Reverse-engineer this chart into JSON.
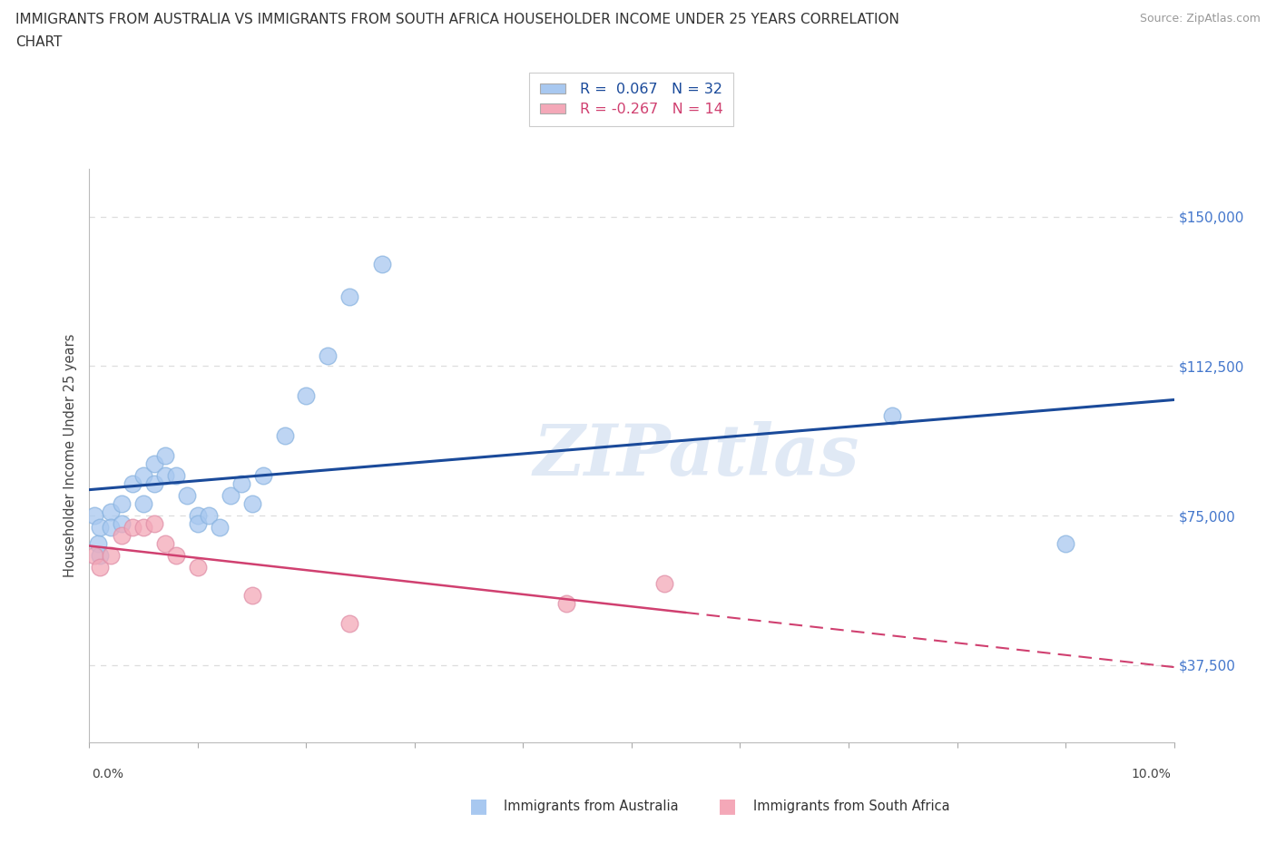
{
  "title_line1": "IMMIGRANTS FROM AUSTRALIA VS IMMIGRANTS FROM SOUTH AFRICA HOUSEHOLDER INCOME UNDER 25 YEARS CORRELATION",
  "title_line2": "CHART",
  "source": "Source: ZipAtlas.com",
  "ylabel": "Householder Income Under 25 years",
  "ytick_values": [
    37500,
    75000,
    112500,
    150000
  ],
  "xlim": [
    0.0,
    0.1
  ],
  "ylim": [
    18000,
    162000
  ],
  "aus_color": "#a8c8f0",
  "sa_color": "#f4a8b8",
  "aus_line_color": "#1a4a9a",
  "sa_line_color": "#d04070",
  "ytick_color": "#4477cc",
  "watermark": "ZIPatlas",
  "australia_x": [
    0.0005,
    0.0008,
    0.001,
    0.001,
    0.002,
    0.002,
    0.003,
    0.003,
    0.004,
    0.005,
    0.005,
    0.006,
    0.006,
    0.007,
    0.007,
    0.008,
    0.009,
    0.01,
    0.01,
    0.011,
    0.012,
    0.013,
    0.014,
    0.015,
    0.016,
    0.018,
    0.02,
    0.022,
    0.024,
    0.027,
    0.074,
    0.09
  ],
  "australia_y": [
    75000,
    68000,
    72000,
    65000,
    76000,
    72000,
    78000,
    73000,
    83000,
    85000,
    78000,
    88000,
    83000,
    90000,
    85000,
    85000,
    80000,
    75000,
    73000,
    75000,
    72000,
    80000,
    83000,
    78000,
    85000,
    95000,
    105000,
    115000,
    130000,
    138000,
    100000,
    68000
  ],
  "sa_x": [
    0.0005,
    0.001,
    0.002,
    0.003,
    0.004,
    0.005,
    0.006,
    0.007,
    0.008,
    0.01,
    0.015,
    0.024,
    0.044,
    0.053
  ],
  "sa_y": [
    65000,
    62000,
    65000,
    70000,
    72000,
    72000,
    73000,
    68000,
    65000,
    62000,
    55000,
    48000,
    53000,
    58000
  ],
  "footer_labels": [
    "Immigrants from Australia",
    "Immigrants from South Africa"
  ],
  "background_color": "#ffffff",
  "grid_color": "#dddddd",
  "legend_text1": "R =  0.067   N = 32",
  "legend_text2": "R = -0.267   N = 14"
}
